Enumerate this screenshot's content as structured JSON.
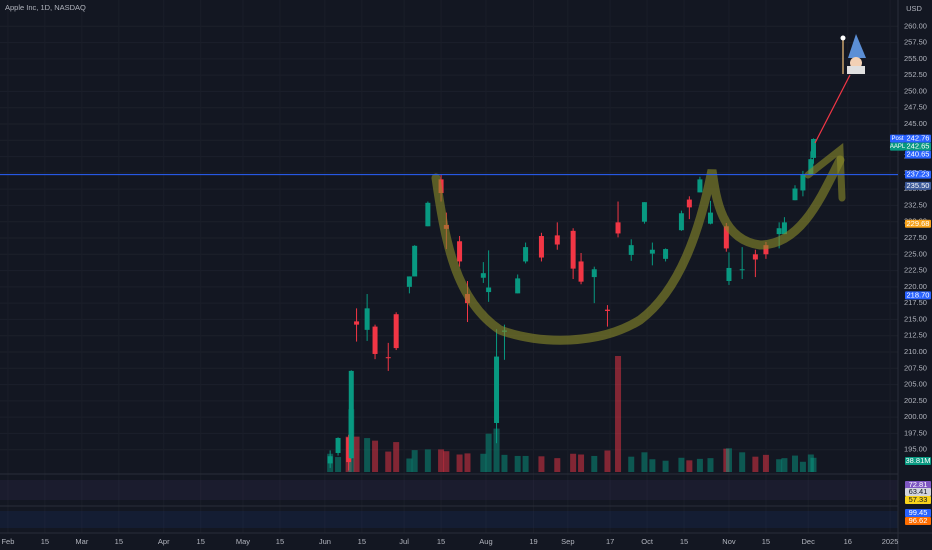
{
  "header": {
    "symbol": "Apple Inc, 1D, NASDAQ",
    "currency": "USD"
  },
  "chart_data": {
    "type": "candlestick",
    "xlim": [
      "01-29",
      "01-04"
    ],
    "xticks": [
      {
        "value": "02-01",
        "label": "Feb"
      },
      {
        "value": "02-15",
        "label": "15"
      },
      {
        "value": "03-01",
        "label": "Mar"
      },
      {
        "value": "03-15",
        "label": "15"
      },
      {
        "value": "04-01",
        "label": "Apr"
      },
      {
        "value": "04-15",
        "label": "15"
      },
      {
        "value": "05-01",
        "label": "May"
      },
      {
        "value": "05-15",
        "label": "15"
      },
      {
        "value": "06-01",
        "label": "Jun"
      },
      {
        "value": "06-15",
        "label": "15"
      },
      {
        "value": "07-01",
        "label": "Jul"
      },
      {
        "value": "07-15",
        "label": "15"
      },
      {
        "value": "08-01",
        "label": "Aug"
      },
      {
        "value": "08-19",
        "label": "19"
      },
      {
        "value": "09-01",
        "label": "Sep"
      },
      {
        "value": "09-17",
        "label": "17"
      },
      {
        "value": "10-01",
        "label": "Oct"
      },
      {
        "value": "10-15",
        "label": "15"
      },
      {
        "value": "11-01",
        "label": "Nov"
      },
      {
        "value": "11-15",
        "label": "15"
      },
      {
        "value": "12-01",
        "label": "Dec"
      },
      {
        "value": "12-16",
        "label": "16"
      },
      {
        "value": "01-01",
        "label": "2025"
      }
    ],
    "ylim": [
      192.5,
      262.5
    ],
    "yticks": [
      {
        "value": 195,
        "label": "195.00"
      },
      {
        "value": 197.5,
        "label": "197.50"
      },
      {
        "value": 200,
        "label": "200.00"
      },
      {
        "value": 202.5,
        "label": "202.50"
      },
      {
        "value": 205,
        "label": "205.00"
      },
      {
        "value": 207.5,
        "label": "207.50"
      },
      {
        "value": 210,
        "label": "210.00"
      },
      {
        "value": 212.5,
        "label": "212.50"
      },
      {
        "value": 215,
        "label": "215.00"
      },
      {
        "value": 217.5,
        "label": "217.50"
      },
      {
        "value": 220,
        "label": "220.00"
      },
      {
        "value": 222.5,
        "label": "222.50"
      },
      {
        "value": 225,
        "label": "225.00"
      },
      {
        "value": 227.5,
        "label": "227.50"
      },
      {
        "value": 230,
        "label": "230.00"
      },
      {
        "value": 232.5,
        "label": "232.50"
      },
      {
        "value": 235,
        "label": "235.00"
      },
      {
        "value": 237.5,
        "label": "237.50"
      },
      {
        "value": 240,
        "label": "240.00"
      },
      {
        "value": 242.5,
        "label": "242.50"
      },
      {
        "value": 245,
        "label": "245.00"
      },
      {
        "value": 247.5,
        "label": "247.50"
      },
      {
        "value": 250,
        "label": "250.00"
      },
      {
        "value": 252.5,
        "label": "252.50"
      },
      {
        "value": 255,
        "label": "255.00"
      },
      {
        "value": 257.5,
        "label": "257.50"
      },
      {
        "value": 260,
        "label": "260.00"
      }
    ],
    "grid": true,
    "up_color": "#089981",
    "down_color": "#f23645",
    "x": [
      "06-03",
      "06-06",
      "06-10",
      "06-11",
      "06-13",
      "06-17",
      "06-20",
      "06-25",
      "06-28",
      "07-03",
      "07-05",
      "07-10",
      "07-15",
      "07-17",
      "07-22",
      "07-25",
      "07-31",
      "08-02",
      "08-05",
      "08-08",
      "08-13",
      "08-16",
      "08-22",
      "08-28",
      "09-03",
      "09-06",
      "09-11",
      "09-16",
      "09-20",
      "09-25",
      "09-30",
      "10-03",
      "10-08",
      "10-14",
      "10-17",
      "10-21",
      "10-25",
      "10-31",
      "11-01",
      "11-06",
      "11-11",
      "11-15",
      "11-20",
      "11-22",
      "11-26",
      "11-29",
      "12-02",
      "12-03"
    ],
    "open": [
      192.9,
      194.5,
      196.9,
      193.7,
      214.7,
      213.4,
      213.9,
      209.2,
      215.8,
      220.0,
      221.6,
      229.3,
      236.5,
      229.5,
      227.0,
      218.9,
      221.4,
      219.2,
      199.1,
      213.1,
      219.0,
      223.9,
      227.8,
      227.9,
      228.6,
      223.9,
      221.5,
      216.5,
      229.9,
      224.9,
      230.0,
      225.1,
      224.3,
      228.7,
      233.4,
      234.5,
      229.7,
      229.3,
      220.9,
      222.6,
      225.0,
      226.4,
      228.1,
      228.1,
      233.3,
      234.8,
      237.3,
      239.8
    ],
    "high": [
      194.9,
      196.9,
      197.3,
      207.2,
      216.7,
      218.9,
      214.2,
      211.4,
      216.1,
      221.6,
      226.4,
      233.1,
      237.2,
      231.4,
      227.8,
      220.9,
      223.8,
      225.6,
      213.5,
      214.2,
      221.9,
      226.8,
      228.3,
      229.9,
      229.0,
      225.2,
      223.1,
      217.2,
      233.1,
      227.3,
      233.0,
      226.8,
      225.9,
      231.7,
      233.9,
      236.9,
      233.2,
      229.8,
      225.3,
      226.1,
      225.7,
      226.9,
      229.9,
      230.7,
      235.6,
      237.8,
      240.8,
      242.8
    ],
    "low": [
      192.2,
      194.1,
      191.8,
      193.6,
      211.6,
      211.7,
      208.9,
      207.1,
      210.3,
      219.0,
      221.6,
      229.3,
      233.1,
      225.8,
      223.1,
      214.6,
      220.6,
      217.7,
      196.0,
      208.8,
      219.0,
      223.6,
      223.9,
      225.7,
      221.2,
      220.4,
      217.5,
      213.9,
      227.6,
      224.0,
      229.7,
      223.3,
      223.9,
      228.6,
      230.4,
      234.5,
      229.6,
      225.4,
      220.3,
      221.2,
      221.5,
      224.3,
      225.9,
      228.1,
      233.3,
      233.9,
      237.2,
      238.9
    ],
    "close": [
      194.0,
      196.8,
      193.1,
      207.1,
      214.2,
      216.7,
      209.7,
      209.1,
      210.6,
      221.6,
      226.3,
      232.9,
      234.4,
      228.9,
      223.9,
      217.5,
      222.1,
      219.9,
      209.3,
      213.3,
      221.3,
      226.1,
      224.5,
      226.5,
      222.8,
      220.8,
      222.7,
      216.3,
      228.2,
      226.4,
      233.0,
      225.7,
      225.8,
      231.3,
      232.2,
      236.5,
      231.4,
      225.9,
      222.9,
      222.7,
      224.2,
      225.0,
      229.0,
      229.9,
      235.1,
      237.3,
      239.6,
      242.7
    ],
    "volume": [
      50,
      41,
      97,
      172,
      97,
      93,
      86,
      56,
      82,
      37,
      60,
      62,
      62,
      57,
      48,
      51,
      50,
      105,
      119,
      47,
      44,
      44,
      43,
      38,
      50,
      48,
      44,
      59,
      318,
      42,
      54,
      35,
      31,
      39,
      32,
      36,
      38,
      64,
      65,
      54,
      42,
      47,
      35,
      38,
      45,
      28,
      48,
      39
    ],
    "price_labels": [
      {
        "tag": "Post",
        "value": 242.76,
        "color": "#2962ff"
      },
      {
        "tag": "AAPL",
        "value": 242.65,
        "color": "#089981"
      },
      {
        "value": 240.65,
        "color": "#2962ff"
      },
      {
        "value": 237.23,
        "color": "#2962ff",
        "line": true
      },
      {
        "value": 235.5,
        "label": "235.50",
        "color": "#3d5a99"
      },
      {
        "value": 229.68,
        "color": "#f7a21b"
      },
      {
        "value": 218.7,
        "label": "218.70",
        "color": "#2962ff"
      }
    ],
    "volume_label": {
      "value": 38.81,
      "label": "38.81M",
      "color": "#089981"
    },
    "indicator_labels": [
      {
        "value": 72.81,
        "color": "#7e57c2"
      },
      {
        "value": 63.41,
        "color": "#d1d4dc"
      },
      {
        "value": 57.33,
        "color": "#f7d21b"
      },
      {
        "value": 99.45,
        "color": "#2962ff"
      },
      {
        "value": 96.62,
        "color": "#ff6d00"
      }
    ]
  }
}
